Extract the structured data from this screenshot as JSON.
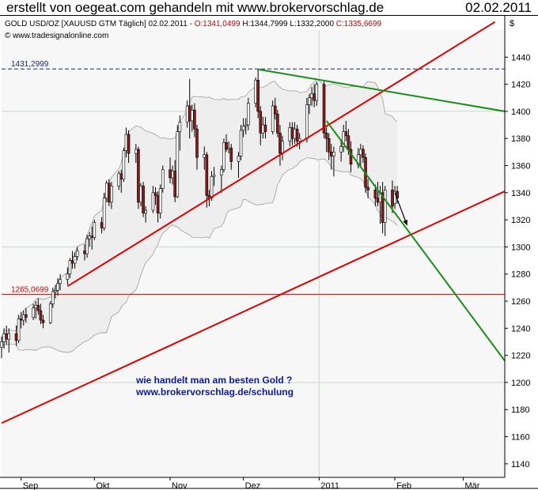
{
  "header": {
    "title": "erstellt von oegeat.com gehandeln mit www.brokervorschlag.de",
    "date": "02.02.2011"
  },
  "chart_data": {
    "type": "candlestick",
    "instrument_line": {
      "name": "GOLD USD/OZ [XAUUSD GTM  Täglich] 02.02.2011 - ",
      "open": "O:1341,0499",
      "high": "H:1344,7999",
      "low": "L:1332,2000",
      "close": "C:1335,6699"
    },
    "copyright": "© www.tradesignalonline.com",
    "currency_label": "$",
    "y_range": [
      1130,
      1460
    ],
    "y_ticks": [
      1140,
      1160,
      1180,
      1200,
      1220,
      1240,
      1260,
      1280,
      1300,
      1320,
      1340,
      1360,
      1380,
      1400,
      1420,
      1440
    ],
    "x_range": [
      "2010-08-24",
      "2011-03-18"
    ],
    "x_ticks": [
      {
        "date": "2010-09-01",
        "label": "Sep"
      },
      {
        "date": "2010-10-01",
        "label": "Okt"
      },
      {
        "date": "2010-11-01",
        "label": "Nov"
      },
      {
        "date": "2010-12-01",
        "label": "Dez"
      },
      {
        "date": "2011-01-01",
        "label": "2011"
      },
      {
        "date": "2011-02-01",
        "label": "Feb"
      },
      {
        "date": "2011-03-01",
        "label": "Mär"
      }
    ],
    "horizontal_levels": [
      {
        "value": 1431.2999,
        "label": "1431,2999",
        "color": "#1a237e",
        "style": "dashed"
      },
      {
        "value": 1265.0699,
        "label": "1265,0699",
        "color": "#d50000",
        "style": "solid"
      }
    ],
    "trendlines": [
      {
        "name": "support-upper",
        "color": "#e00000",
        "points": [
          [
            "2010-09-20",
            1271
          ],
          [
            "2011-03-14",
            1466
          ]
        ]
      },
      {
        "name": "support-lower",
        "color": "#e00000",
        "points": [
          [
            "2010-08-24",
            1170
          ],
          [
            "2011-03-18",
            1341
          ]
        ]
      },
      {
        "name": "resistance-upper",
        "color": "#1a8c1a",
        "points": [
          [
            "2010-12-07",
            1431
          ],
          [
            "2011-03-18",
            1400
          ]
        ]
      },
      {
        "name": "resistance-steep",
        "color": "#1a8c1a",
        "points": [
          [
            "2011-01-04",
            1393
          ],
          [
            "2011-03-18",
            1216
          ]
        ]
      }
    ],
    "arrow": {
      "color": "#000000",
      "from": [
        "2011-02-01",
        1340
      ],
      "to": [
        "2011-02-06",
        1316
      ]
    },
    "annotation": {
      "line1": "wie handelt man am besten Gold ?",
      "line2": "www.brokervorschlag.de/schulung",
      "color": "#0a1a9a"
    },
    "colors": {
      "up_candle": "#ffffff",
      "down_candle": "#8b1a1a",
      "band": "#9e9e9e",
      "grid": "#c8d8c8",
      "plot_bg": "#f7f7f7"
    },
    "candles": [
      {
        "d": "2010-08-24",
        "o": 1226,
        "h": 1234,
        "l": 1218,
        "c": 1230
      },
      {
        "d": "2010-08-25",
        "o": 1230,
        "h": 1240,
        "l": 1225,
        "c": 1236
      },
      {
        "d": "2010-08-26",
        "o": 1236,
        "h": 1242,
        "l": 1228,
        "c": 1232
      },
      {
        "d": "2010-08-27",
        "o": 1232,
        "h": 1240,
        "l": 1222,
        "c": 1236
      },
      {
        "d": "2010-08-30",
        "o": 1236,
        "h": 1242,
        "l": 1227,
        "c": 1231
      },
      {
        "d": "2010-08-31",
        "o": 1231,
        "h": 1250,
        "l": 1229,
        "c": 1247
      },
      {
        "d": "2010-09-01",
        "o": 1247,
        "h": 1252,
        "l": 1240,
        "c": 1246
      },
      {
        "d": "2010-09-02",
        "o": 1246,
        "h": 1253,
        "l": 1242,
        "c": 1250
      },
      {
        "d": "2010-09-03",
        "o": 1250,
        "h": 1255,
        "l": 1244,
        "c": 1248
      },
      {
        "d": "2010-09-06",
        "o": 1248,
        "h": 1258,
        "l": 1246,
        "c": 1255
      },
      {
        "d": "2010-09-07",
        "o": 1255,
        "h": 1260,
        "l": 1247,
        "c": 1257
      },
      {
        "d": "2010-09-08",
        "o": 1257,
        "h": 1262,
        "l": 1250,
        "c": 1253
      },
      {
        "d": "2010-09-09",
        "o": 1253,
        "h": 1258,
        "l": 1243,
        "c": 1246
      },
      {
        "d": "2010-09-10",
        "o": 1246,
        "h": 1250,
        "l": 1240,
        "c": 1244
      },
      {
        "d": "2010-09-13",
        "o": 1244,
        "h": 1260,
        "l": 1243,
        "c": 1258
      },
      {
        "d": "2010-09-14",
        "o": 1258,
        "h": 1270,
        "l": 1255,
        "c": 1267
      },
      {
        "d": "2010-09-15",
        "o": 1267,
        "h": 1272,
        "l": 1262,
        "c": 1268
      },
      {
        "d": "2010-09-16",
        "o": 1268,
        "h": 1277,
        "l": 1264,
        "c": 1273
      },
      {
        "d": "2010-09-17",
        "o": 1273,
        "h": 1280,
        "l": 1268,
        "c": 1276
      },
      {
        "d": "2010-09-20",
        "o": 1276,
        "h": 1285,
        "l": 1272,
        "c": 1280
      },
      {
        "d": "2010-09-21",
        "o": 1280,
        "h": 1292,
        "l": 1277,
        "c": 1290
      },
      {
        "d": "2010-09-22",
        "o": 1290,
        "h": 1297,
        "l": 1284,
        "c": 1288
      },
      {
        "d": "2010-09-23",
        "o": 1288,
        "h": 1296,
        "l": 1284,
        "c": 1293
      },
      {
        "d": "2010-09-24",
        "o": 1293,
        "h": 1300,
        "l": 1290,
        "c": 1297
      },
      {
        "d": "2010-09-27",
        "o": 1297,
        "h": 1302,
        "l": 1290,
        "c": 1295
      },
      {
        "d": "2010-09-28",
        "o": 1295,
        "h": 1309,
        "l": 1292,
        "c": 1306
      },
      {
        "d": "2010-09-29",
        "o": 1306,
        "h": 1311,
        "l": 1300,
        "c": 1308
      },
      {
        "d": "2010-09-30",
        "o": 1308,
        "h": 1315,
        "l": 1298,
        "c": 1307
      },
      {
        "d": "2010-10-01",
        "o": 1307,
        "h": 1320,
        "l": 1305,
        "c": 1318
      },
      {
        "d": "2010-10-04",
        "o": 1318,
        "h": 1322,
        "l": 1310,
        "c": 1314
      },
      {
        "d": "2010-10-05",
        "o": 1314,
        "h": 1340,
        "l": 1312,
        "c": 1336
      },
      {
        "d": "2010-10-06",
        "o": 1336,
        "h": 1349,
        "l": 1333,
        "c": 1347
      },
      {
        "d": "2010-10-07",
        "o": 1347,
        "h": 1350,
        "l": 1330,
        "c": 1333
      },
      {
        "d": "2010-10-08",
        "o": 1333,
        "h": 1348,
        "l": 1328,
        "c": 1345
      },
      {
        "d": "2010-10-11",
        "o": 1345,
        "h": 1356,
        "l": 1342,
        "c": 1354
      },
      {
        "d": "2010-10-12",
        "o": 1354,
        "h": 1357,
        "l": 1340,
        "c": 1350
      },
      {
        "d": "2010-10-13",
        "o": 1350,
        "h": 1373,
        "l": 1348,
        "c": 1371
      },
      {
        "d": "2010-10-14",
        "o": 1371,
        "h": 1388,
        "l": 1366,
        "c": 1383
      },
      {
        "d": "2010-10-15",
        "o": 1383,
        "h": 1386,
        "l": 1362,
        "c": 1369
      },
      {
        "d": "2010-10-18",
        "o": 1369,
        "h": 1376,
        "l": 1362,
        "c": 1372
      },
      {
        "d": "2010-10-19",
        "o": 1372,
        "h": 1374,
        "l": 1328,
        "c": 1333
      },
      {
        "d": "2010-10-20",
        "o": 1333,
        "h": 1347,
        "l": 1330,
        "c": 1345
      },
      {
        "d": "2010-10-21",
        "o": 1345,
        "h": 1348,
        "l": 1322,
        "c": 1325
      },
      {
        "d": "2010-10-22",
        "o": 1325,
        "h": 1330,
        "l": 1318,
        "c": 1327
      },
      {
        "d": "2010-10-25",
        "o": 1327,
        "h": 1345,
        "l": 1325,
        "c": 1340
      },
      {
        "d": "2010-10-26",
        "o": 1340,
        "h": 1344,
        "l": 1331,
        "c": 1338
      },
      {
        "d": "2010-10-27",
        "o": 1338,
        "h": 1341,
        "l": 1318,
        "c": 1325
      },
      {
        "d": "2010-10-28",
        "o": 1325,
        "h": 1346,
        "l": 1321,
        "c": 1343
      },
      {
        "d": "2010-10-29",
        "o": 1343,
        "h": 1360,
        "l": 1340,
        "c": 1357
      },
      {
        "d": "2010-11-01",
        "o": 1357,
        "h": 1366,
        "l": 1347,
        "c": 1351
      },
      {
        "d": "2010-11-02",
        "o": 1351,
        "h": 1360,
        "l": 1346,
        "c": 1356
      },
      {
        "d": "2010-11-03",
        "o": 1356,
        "h": 1364,
        "l": 1333,
        "c": 1337
      },
      {
        "d": "2010-11-04",
        "o": 1337,
        "h": 1390,
        "l": 1336,
        "c": 1385
      },
      {
        "d": "2010-11-05",
        "o": 1385,
        "h": 1397,
        "l": 1371,
        "c": 1392
      },
      {
        "d": "2010-11-08",
        "o": 1392,
        "h": 1408,
        "l": 1388,
        "c": 1404
      },
      {
        "d": "2010-11-09",
        "o": 1404,
        "h": 1424,
        "l": 1380,
        "c": 1393
      },
      {
        "d": "2010-11-10",
        "o": 1393,
        "h": 1405,
        "l": 1385,
        "c": 1401
      },
      {
        "d": "2010-11-11",
        "o": 1401,
        "h": 1406,
        "l": 1381,
        "c": 1387
      },
      {
        "d": "2010-11-12",
        "o": 1387,
        "h": 1390,
        "l": 1357,
        "c": 1366
      },
      {
        "d": "2010-11-15",
        "o": 1366,
        "h": 1374,
        "l": 1357,
        "c": 1368
      },
      {
        "d": "2010-11-16",
        "o": 1368,
        "h": 1370,
        "l": 1329,
        "c": 1338
      },
      {
        "d": "2010-11-17",
        "o": 1338,
        "h": 1342,
        "l": 1330,
        "c": 1336
      },
      {
        "d": "2010-11-18",
        "o": 1336,
        "h": 1356,
        "l": 1334,
        "c": 1352
      },
      {
        "d": "2010-11-19",
        "o": 1352,
        "h": 1359,
        "l": 1345,
        "c": 1353
      },
      {
        "d": "2010-11-22",
        "o": 1353,
        "h": 1360,
        "l": 1340,
        "c": 1357
      },
      {
        "d": "2010-11-23",
        "o": 1357,
        "h": 1380,
        "l": 1355,
        "c": 1377
      },
      {
        "d": "2010-11-24",
        "o": 1377,
        "h": 1383,
        "l": 1370,
        "c": 1372
      },
      {
        "d": "2010-11-25",
        "o": 1372,
        "h": 1378,
        "l": 1369,
        "c": 1373
      },
      {
        "d": "2010-11-26",
        "o": 1373,
        "h": 1376,
        "l": 1357,
        "c": 1363
      },
      {
        "d": "2010-11-29",
        "o": 1363,
        "h": 1370,
        "l": 1351,
        "c": 1367
      },
      {
        "d": "2010-11-30",
        "o": 1367,
        "h": 1390,
        "l": 1364,
        "c": 1386
      },
      {
        "d": "2010-12-01",
        "o": 1386,
        "h": 1395,
        "l": 1381,
        "c": 1389
      },
      {
        "d": "2010-12-02",
        "o": 1389,
        "h": 1395,
        "l": 1383,
        "c": 1390
      },
      {
        "d": "2010-12-03",
        "o": 1390,
        "h": 1410,
        "l": 1386,
        "c": 1406
      },
      {
        "d": "2010-12-06",
        "o": 1406,
        "h": 1425,
        "l": 1403,
        "c": 1423
      },
      {
        "d": "2010-12-07",
        "o": 1423,
        "h": 1431,
        "l": 1395,
        "c": 1400
      },
      {
        "d": "2010-12-08",
        "o": 1400,
        "h": 1404,
        "l": 1375,
        "c": 1384
      },
      {
        "d": "2010-12-09",
        "o": 1384,
        "h": 1396,
        "l": 1380,
        "c": 1390
      },
      {
        "d": "2010-12-10",
        "o": 1390,
        "h": 1396,
        "l": 1380,
        "c": 1385
      },
      {
        "d": "2010-12-13",
        "o": 1385,
        "h": 1408,
        "l": 1383,
        "c": 1404
      },
      {
        "d": "2010-12-14",
        "o": 1404,
        "h": 1410,
        "l": 1394,
        "c": 1398
      },
      {
        "d": "2010-12-15",
        "o": 1398,
        "h": 1401,
        "l": 1381,
        "c": 1384
      },
      {
        "d": "2010-12-16",
        "o": 1384,
        "h": 1390,
        "l": 1360,
        "c": 1369
      },
      {
        "d": "2010-12-17",
        "o": 1369,
        "h": 1382,
        "l": 1364,
        "c": 1378
      },
      {
        "d": "2010-12-20",
        "o": 1378,
        "h": 1392,
        "l": 1374,
        "c": 1388
      },
      {
        "d": "2010-12-21",
        "o": 1388,
        "h": 1392,
        "l": 1375,
        "c": 1380
      },
      {
        "d": "2010-12-22",
        "o": 1380,
        "h": 1392,
        "l": 1376,
        "c": 1387
      },
      {
        "d": "2010-12-23",
        "o": 1387,
        "h": 1390,
        "l": 1374,
        "c": 1378
      },
      {
        "d": "2010-12-24",
        "o": 1378,
        "h": 1384,
        "l": 1372,
        "c": 1380
      },
      {
        "d": "2010-12-27",
        "o": 1380,
        "h": 1410,
        "l": 1377,
        "c": 1405
      },
      {
        "d": "2010-12-28",
        "o": 1405,
        "h": 1413,
        "l": 1398,
        "c": 1410
      },
      {
        "d": "2010-12-29",
        "o": 1410,
        "h": 1418,
        "l": 1404,
        "c": 1413
      },
      {
        "d": "2010-12-30",
        "o": 1413,
        "h": 1420,
        "l": 1403,
        "c": 1408
      },
      {
        "d": "2010-12-31",
        "o": 1408,
        "h": 1422,
        "l": 1404,
        "c": 1420
      },
      {
        "d": "2011-01-03",
        "o": 1420,
        "h": 1423,
        "l": 1380,
        "c": 1384
      },
      {
        "d": "2011-01-04",
        "o": 1384,
        "h": 1388,
        "l": 1370,
        "c": 1380
      },
      {
        "d": "2011-01-05",
        "o": 1380,
        "h": 1384,
        "l": 1364,
        "c": 1370
      },
      {
        "d": "2011-01-06",
        "o": 1370,
        "h": 1376,
        "l": 1357,
        "c": 1367
      },
      {
        "d": "2011-01-07",
        "o": 1367,
        "h": 1374,
        "l": 1352,
        "c": 1370
      },
      {
        "d": "2011-01-10",
        "o": 1370,
        "h": 1378,
        "l": 1363,
        "c": 1374
      },
      {
        "d": "2011-01-11",
        "o": 1374,
        "h": 1390,
        "l": 1370,
        "c": 1385
      },
      {
        "d": "2011-01-12",
        "o": 1385,
        "h": 1393,
        "l": 1378,
        "c": 1382
      },
      {
        "d": "2011-01-13",
        "o": 1382,
        "h": 1387,
        "l": 1368,
        "c": 1372
      },
      {
        "d": "2011-01-14",
        "o": 1372,
        "h": 1378,
        "l": 1355,
        "c": 1361
      },
      {
        "d": "2011-01-17",
        "o": 1361,
        "h": 1373,
        "l": 1358,
        "c": 1368
      },
      {
        "d": "2011-01-18",
        "o": 1368,
        "h": 1376,
        "l": 1360,
        "c": 1372
      },
      {
        "d": "2011-01-19",
        "o": 1372,
        "h": 1375,
        "l": 1362,
        "c": 1366
      },
      {
        "d": "2011-01-20",
        "o": 1366,
        "h": 1369,
        "l": 1340,
        "c": 1344
      },
      {
        "d": "2011-01-21",
        "o": 1344,
        "h": 1350,
        "l": 1336,
        "c": 1342
      },
      {
        "d": "2011-01-24",
        "o": 1342,
        "h": 1346,
        "l": 1330,
        "c": 1336
      },
      {
        "d": "2011-01-25",
        "o": 1336,
        "h": 1348,
        "l": 1330,
        "c": 1333
      },
      {
        "d": "2011-01-26",
        "o": 1333,
        "h": 1345,
        "l": 1317,
        "c": 1340
      },
      {
        "d": "2011-01-27",
        "o": 1340,
        "h": 1348,
        "l": 1310,
        "c": 1318
      },
      {
        "d": "2011-01-28",
        "o": 1318,
        "h": 1345,
        "l": 1308,
        "c": 1342
      },
      {
        "d": "2011-01-31",
        "o": 1342,
        "h": 1349,
        "l": 1325,
        "c": 1330
      },
      {
        "d": "2011-02-01",
        "o": 1332,
        "h": 1345,
        "l": 1328,
        "c": 1341
      },
      {
        "d": "2011-02-02",
        "o": 1341,
        "h": 1345,
        "l": 1332,
        "c": 1336
      }
    ]
  }
}
